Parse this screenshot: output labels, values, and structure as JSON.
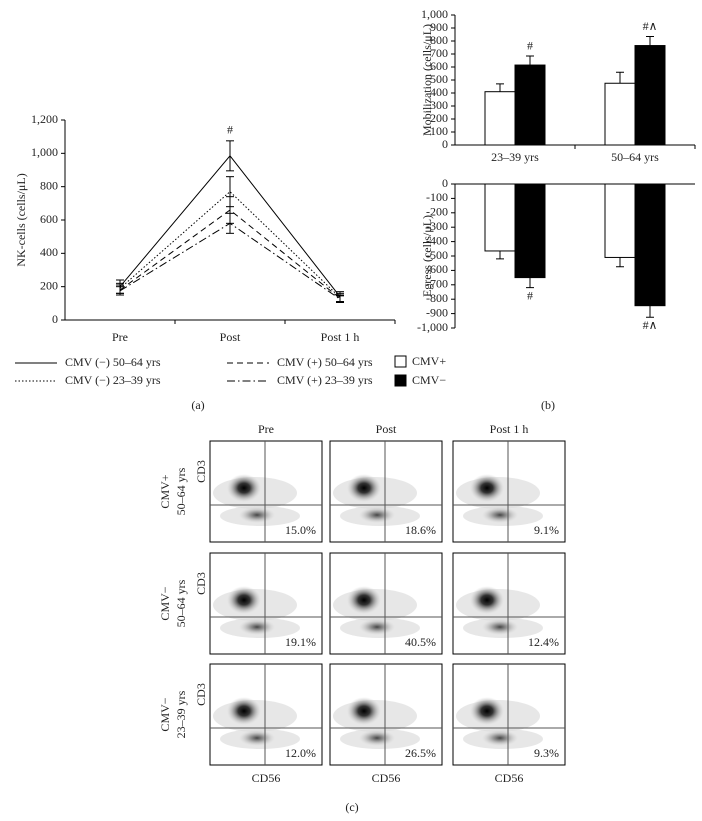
{
  "panel_labels": [
    "(a)",
    "(b)",
    "(c)"
  ],
  "chart_data": [
    {
      "type": "line",
      "y_label": "NK-cells (cells/μL)",
      "categories": [
        "Pre",
        "Post",
        "Post 1 h"
      ],
      "ylim": [
        0,
        1200
      ],
      "yticks": [
        0,
        200,
        400,
        600,
        800,
        {
          "value": 1000,
          "label": "1,000"
        },
        {
          "value": 1200,
          "label": "1,200"
        }
      ],
      "series": [
        {
          "name": "CMV (−) 50–64 yrs",
          "color": "#000000",
          "dash": "solid",
          "values": [
            200,
            985,
            140
          ],
          "errors": [
            40,
            90,
            30
          ],
          "annotations": [
            null,
            "#",
            null
          ]
        },
        {
          "name": "CMV (−) 23–39 yrs",
          "color": "#000000",
          "dash": "dotted",
          "values": [
            190,
            770,
            135
          ],
          "errors": [
            30,
            90,
            25
          ]
        },
        {
          "name": "CMV (+) 50–64 yrs",
          "color": "#000000",
          "dash": "dashed",
          "values": [
            180,
            660,
            130
          ],
          "errors": [
            30,
            80,
            20
          ]
        },
        {
          "name": "CMV (+) 23–39 yrs",
          "color": "#000000",
          "dash": "dashdot",
          "values": [
            175,
            580,
            125
          ],
          "errors": [
            25,
            60,
            20
          ]
        }
      ]
    },
    {
      "type": "bar",
      "y_label": "Mobilization (cells/μL)",
      "categories": [
        "23–39 yrs",
        "50–64 yrs"
      ],
      "ylim": [
        0,
        1000
      ],
      "yticks": [
        0,
        100,
        200,
        300,
        400,
        500,
        600,
        700,
        800,
        900,
        {
          "value": 1000,
          "label": "1,000"
        }
      ],
      "series": [
        {
          "name": "CMV+",
          "color": "#ffffff",
          "values": [
            410,
            475
          ],
          "errors": [
            60,
            85
          ]
        },
        {
          "name": "CMV−",
          "color": "#000000",
          "values": [
            615,
            765
          ],
          "errors": [
            70,
            70
          ],
          "annotations": [
            "#",
            "#∧"
          ]
        }
      ]
    },
    {
      "type": "bar",
      "y_label": "Egress (cells/μL)",
      "ylim": [
        -1000,
        0
      ],
      "yticks": [
        0,
        -100,
        -200,
        -300,
        -400,
        -500,
        -600,
        -700,
        -800,
        -900,
        {
          "value": -1000,
          "label": "-1,000"
        }
      ],
      "series": [
        {
          "color": "#ffffff",
          "values": [
            -465,
            -510
          ],
          "errors": [
            55,
            65
          ]
        },
        {
          "color": "#000000",
          "values": [
            -650,
            -845
          ],
          "errors": [
            70,
            80
          ],
          "annotations": [
            "#",
            "#∧"
          ]
        }
      ]
    }
  ],
  "flow_cytometry": {
    "columns": [
      "Pre",
      "Post",
      "Post 1 h"
    ],
    "x_label": "CD56",
    "rows": [
      {
        "group": "CMV+",
        "age": "50–64 yrs",
        "y_label": "CD3",
        "percentages": [
          "15.0%",
          "18.6%",
          "9.1%"
        ]
      },
      {
        "group": "CMV−",
        "age": "50–64 yrs",
        "y_label": "CD3",
        "percentages": [
          "19.1%",
          "40.5%",
          "12.4%"
        ]
      },
      {
        "group": "CMV−",
        "age": "23–39 yrs",
        "y_label": "CD3",
        "percentages": [
          "12.0%",
          "26.5%",
          "9.3%"
        ]
      }
    ]
  }
}
